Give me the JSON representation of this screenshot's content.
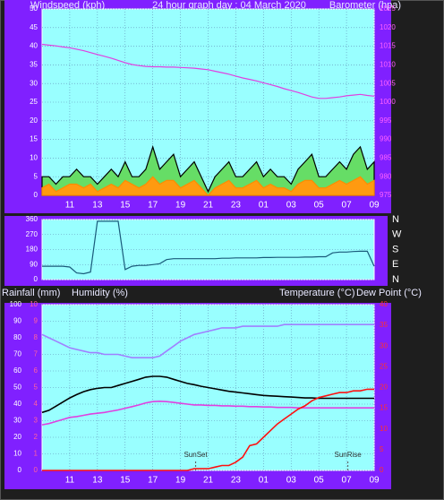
{
  "chart_data": [
    {
      "type": "line",
      "title": "24 hour graph day : 04 March 2020",
      "y_label": "Windspeed (kph)",
      "y2_label": "Barometer (hpa)",
      "x": [
        0,
        0.5,
        1,
        1.5,
        2,
        2.5,
        3,
        3.5,
        4,
        4.5,
        5,
        5.5,
        6,
        6.5,
        7,
        7.5,
        8,
        8.5,
        9,
        9.5,
        10,
        10.5,
        11,
        11.5,
        12,
        12.5,
        13,
        13.5,
        14,
        14.5,
        15,
        15.5,
        16,
        16.5,
        17,
        17.5,
        18,
        18.5,
        19,
        19.5,
        20,
        20.5,
        21,
        21.5,
        22,
        22.5,
        23,
        23.5,
        24
      ],
      "xlim": [
        0,
        24
      ],
      "xticks": [
        {
          "value": 2,
          "label": "11"
        },
        {
          "value": 4,
          "label": "13"
        },
        {
          "value": 6,
          "label": "15"
        },
        {
          "value": 8,
          "label": "17"
        },
        {
          "value": 10,
          "label": "19"
        },
        {
          "value": 12,
          "label": "21"
        },
        {
          "value": 14,
          "label": "23"
        },
        {
          "value": 16,
          "label": "01"
        },
        {
          "value": 18,
          "label": "03"
        },
        {
          "value": 20,
          "label": "05"
        },
        {
          "value": 22,
          "label": "07"
        },
        {
          "value": 24,
          "label": "09"
        }
      ],
      "ylim": [
        0,
        50
      ],
      "yticks": [
        0,
        5,
        10,
        15,
        20,
        25,
        30,
        35,
        40,
        45,
        50
      ],
      "y2lim": [
        975,
        1025
      ],
      "y2ticks": [
        975,
        980,
        985,
        990,
        995,
        1000,
        1005,
        1010,
        1015,
        1020,
        1025
      ],
      "grid": true,
      "series": [
        {
          "color": "#000000",
          "fill": "#66dd66",
          "values": [
            5,
            5,
            3,
            5,
            5,
            7,
            5,
            5,
            3,
            5,
            7,
            5,
            9,
            5,
            5,
            7,
            13,
            7,
            9,
            11,
            5,
            7,
            9,
            5,
            1,
            5,
            7,
            9,
            5,
            5,
            7,
            9,
            5,
            7,
            5,
            5,
            3,
            7,
            9,
            11,
            5,
            5,
            7,
            9,
            7,
            11,
            13,
            7,
            9
          ]
        },
        {
          "color": "#ff8c00",
          "fill": "#ff9a10",
          "values": [
            2,
            3,
            1,
            2,
            3,
            3,
            2,
            3,
            1,
            2,
            3,
            2,
            4,
            3,
            2,
            3,
            5,
            3,
            4,
            4,
            2,
            3,
            4,
            2,
            0,
            2,
            3,
            4,
            2,
            2,
            3,
            4,
            2,
            3,
            2,
            2,
            1,
            3,
            4,
            4,
            2,
            2,
            3,
            4,
            3,
            4,
            5,
            3,
            4
          ]
        },
        {
          "color": "#e040e0",
          "axis": "y2",
          "values": [
            1015.5,
            1015.3,
            1015.1,
            1014.8,
            1014.6,
            1014.2,
            1013.8,
            1013.3,
            1012.8,
            1012.3,
            1011.8,
            1011.2,
            1010.6,
            1010.1,
            1009.8,
            1009.6,
            1009.5,
            1009.5,
            1009.4,
            1009.4,
            1009.3,
            1009.2,
            1009.1,
            1008.9,
            1008.7,
            1008.3,
            1007.9,
            1007.5,
            1007.0,
            1006.5,
            1006.1,
            1005.7,
            1005.2,
            1004.7,
            1004.2,
            1003.6,
            1003.1,
            1002.6,
            1002.0,
            1001.4,
            1001.0,
            1001.0,
            1001.2,
            1001.4,
            1001.7,
            1001.9,
            1002.1,
            1001.8,
            1001.6
          ]
        }
      ]
    },
    {
      "type": "line",
      "x": [
        0,
        0.5,
        1,
        1.5,
        2,
        2.5,
        3,
        3.5,
        4,
        4.5,
        5,
        5.5,
        6,
        6.5,
        7,
        7.5,
        8,
        8.5,
        9,
        9.5,
        10,
        10.5,
        11,
        11.5,
        12,
        12.5,
        13,
        13.5,
        14,
        14.5,
        15,
        15.5,
        16,
        16.5,
        17,
        17.5,
        18,
        18.5,
        19,
        19.5,
        20,
        20.5,
        21,
        21.5,
        22,
        22.5,
        23,
        23.5,
        24
      ],
      "xlim": [
        0,
        24
      ],
      "ylim": [
        0,
        360
      ],
      "yticks": [
        0,
        90,
        180,
        270,
        360
      ],
      "y2lim": [
        0,
        360
      ],
      "y2ticks": [
        {
          "value": 0,
          "label": "N"
        },
        {
          "value": 90,
          "label": "E"
        },
        {
          "value": 180,
          "label": "S"
        },
        {
          "value": 270,
          "label": "W"
        },
        {
          "value": 360,
          "label": "N"
        }
      ],
      "grid": true,
      "series": [
        {
          "color": "#1a5a7a",
          "values": [
            80,
            80,
            80,
            80,
            75,
            40,
            35,
            45,
            350,
            350,
            350,
            350,
            60,
            80,
            85,
            85,
            90,
            95,
            120,
            125,
            125,
            125,
            125,
            125,
            125,
            125,
            128,
            128,
            130,
            130,
            130,
            130,
            132,
            132,
            133,
            133,
            133,
            133,
            135,
            135,
            137,
            137,
            160,
            165,
            165,
            168,
            170,
            170,
            80
          ]
        }
      ]
    },
    {
      "type": "line",
      "y_label": "Rainfall (mm)",
      "y_label_2": "Humidity (%)",
      "y2_label": "Temperature (°C)",
      "y2_label_2": "Dew Point (°C)",
      "x": [
        0,
        0.5,
        1,
        1.5,
        2,
        2.5,
        3,
        3.5,
        4,
        4.5,
        5,
        5.5,
        6,
        6.5,
        7,
        7.5,
        8,
        8.5,
        9,
        9.5,
        10,
        10.5,
        11,
        11.5,
        12,
        12.5,
        13,
        13.5,
        14,
        14.5,
        15,
        15.5,
        16,
        16.5,
        17,
        17.5,
        18,
        18.5,
        19,
        19.5,
        20,
        20.5,
        21,
        21.5,
        22,
        22.5,
        23,
        23.5,
        24
      ],
      "xlim": [
        0,
        24
      ],
      "xticks": [
        {
          "value": 2,
          "label": "11"
        },
        {
          "value": 4,
          "label": "13"
        },
        {
          "value": 6,
          "label": "15"
        },
        {
          "value": 8,
          "label": "17"
        },
        {
          "value": 10,
          "label": "19"
        },
        {
          "value": 12,
          "label": "21"
        },
        {
          "value": 14,
          "label": "23"
        },
        {
          "value": 16,
          "label": "01"
        },
        {
          "value": 18,
          "label": "03"
        },
        {
          "value": 20,
          "label": "05"
        },
        {
          "value": 22,
          "label": "07"
        },
        {
          "value": 24,
          "label": "09"
        }
      ],
      "ylim": [
        0,
        100
      ],
      "yticks": [
        0,
        10,
        20,
        30,
        40,
        50,
        60,
        70,
        80,
        90,
        100
      ],
      "y3lim": [
        0,
        10
      ],
      "y3ticks": [
        0,
        1,
        2,
        3,
        4,
        5,
        6,
        7,
        8,
        9,
        10
      ],
      "y2lim": [
        0,
        40
      ],
      "y2ticks": [
        0,
        5,
        10,
        15,
        20,
        25,
        30,
        35,
        40
      ],
      "grid": true,
      "annotations": [
        {
          "text": "SunSet",
          "x": 11.1
        },
        {
          "text": "SunRise",
          "x": 22.1
        }
      ],
      "series": [
        {
          "color": "#a080ff",
          "values": [
            82,
            80,
            78,
            76,
            74,
            73,
            72,
            71,
            71,
            70,
            70,
            70,
            69,
            68,
            68,
            68,
            68,
            69,
            72,
            75,
            78,
            80,
            82,
            83,
            84,
            85,
            86,
            86,
            86,
            87,
            87,
            87,
            87,
            87,
            87,
            88,
            88,
            88,
            88,
            88,
            88,
            88,
            88,
            88,
            88,
            88,
            88,
            88,
            88
          ]
        },
        {
          "color": "#000000",
          "axis": "y2",
          "values": [
            14,
            14.5,
            15.5,
            16.5,
            17.5,
            18.3,
            19,
            19.5,
            19.8,
            20,
            20,
            20.5,
            21,
            21.5,
            22,
            22.5,
            22.7,
            22.7,
            22.5,
            22,
            21.5,
            21,
            20.7,
            20.3,
            20,
            19.7,
            19.4,
            19.1,
            18.9,
            18.7,
            18.5,
            18.3,
            18.1,
            18,
            17.9,
            17.8,
            17.7,
            17.6,
            17.5,
            17.5,
            17.4,
            17.4,
            17.4,
            17.4,
            17.4,
            17.4,
            17.4,
            17.4,
            17.4
          ]
        },
        {
          "color": "#e040e0",
          "axis": "y2",
          "values": [
            11,
            11.3,
            11.8,
            12.3,
            12.8,
            13,
            13.3,
            13.6,
            13.8,
            14,
            14.3,
            14.6,
            15,
            15.4,
            15.8,
            16.3,
            16.6,
            16.7,
            16.6,
            16.4,
            16.2,
            16,
            15.8,
            15.8,
            15.7,
            15.7,
            15.6,
            15.6,
            15.5,
            15.5,
            15.4,
            15.4,
            15.3,
            15.3,
            15.2,
            15.2,
            15.2,
            15.1,
            15.1,
            15.1,
            15.1,
            15.1,
            15.1,
            15.1,
            15.1,
            15.1,
            15.1,
            15.1,
            15.1
          ]
        },
        {
          "color": "#ff1010",
          "axis": "y3",
          "values": [
            0,
            0,
            0,
            0,
            0,
            0,
            0,
            0,
            0,
            0,
            0,
            0,
            0,
            0,
            0,
            0,
            0,
            0,
            0,
            0,
            0,
            0,
            0.1,
            0.1,
            0.1,
            0.2,
            0.3,
            0.3,
            0.5,
            0.8,
            1.5,
            1.6,
            2.0,
            2.4,
            2.8,
            3.1,
            3.4,
            3.7,
            3.9,
            4.2,
            4.4,
            4.5,
            4.6,
            4.7,
            4.7,
            4.8,
            4.8,
            4.9,
            4.9
          ]
        }
      ]
    }
  ]
}
